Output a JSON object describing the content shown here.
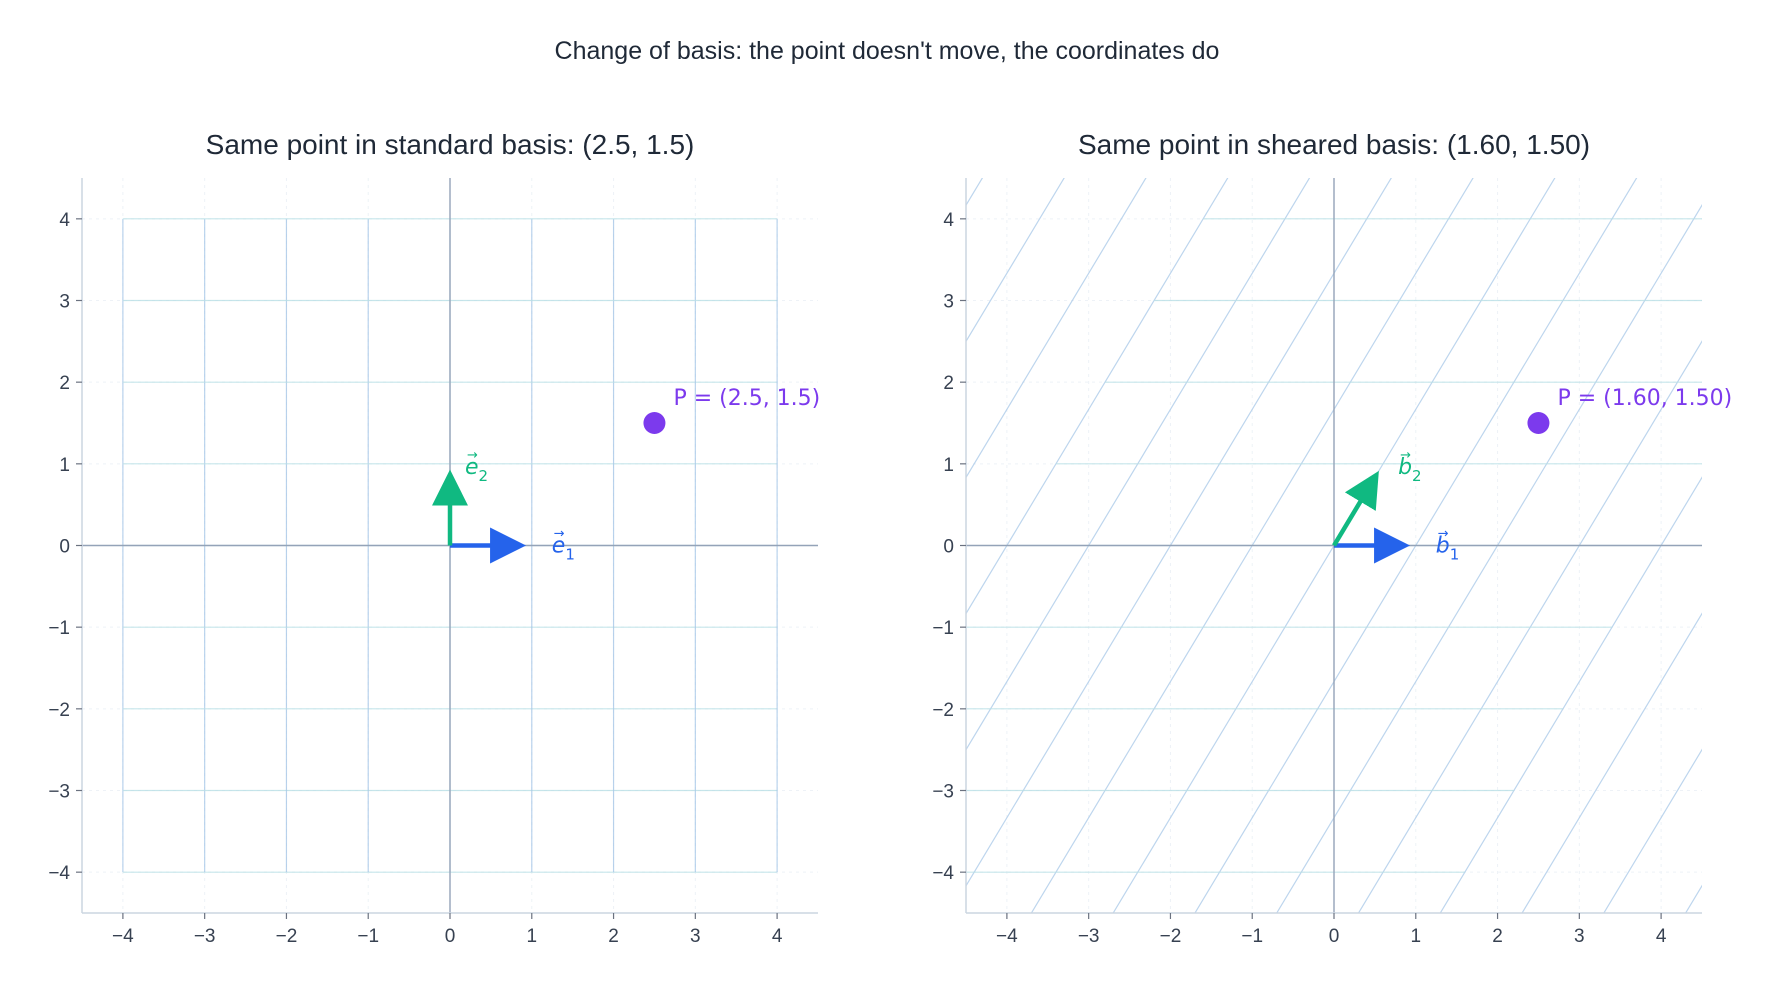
{
  "suptitle": "Change of basis: the point doesn't move, the coordinates do",
  "colors": {
    "e1": "#2563eb",
    "e2": "#10b981",
    "point": "#7c3aed",
    "grid_v": "#a8c8e8",
    "grid_h": "#b9dfe6",
    "axis": "#94a3b8",
    "spine": "#cbd5e1"
  },
  "chart_data": [
    {
      "type": "scatter",
      "title": "Same point in standard basis: (2.5, 1.5)",
      "xlim": [
        -4.5,
        4.5
      ],
      "ylim": [
        -4.5,
        4.5
      ],
      "xticks": [
        "−4",
        "−3",
        "−2",
        "−1",
        "0",
        "1",
        "2",
        "3",
        "4"
      ],
      "yticks": [
        "−4",
        "−3",
        "−2",
        "−1",
        "0",
        "1",
        "2",
        "3",
        "4"
      ],
      "basis": [
        {
          "name": "e1",
          "label": "e",
          "sub": "1",
          "vector": [
            1,
            0
          ]
        },
        {
          "name": "e2",
          "label": "e",
          "sub": "2",
          "vector": [
            0,
            1
          ]
        }
      ],
      "grid": "standard",
      "point": {
        "x": 2.5,
        "y": 1.5,
        "label": "P = (2.5, 1.5)"
      }
    },
    {
      "type": "scatter",
      "title": "Same point in sheared basis: (1.60, 1.50)",
      "xlim": [
        -4.5,
        4.5
      ],
      "ylim": [
        -4.5,
        4.5
      ],
      "xticks": [
        "−4",
        "−3",
        "−2",
        "−1",
        "0",
        "1",
        "2",
        "3",
        "4"
      ],
      "yticks": [
        "−4",
        "−3",
        "−2",
        "−1",
        "0",
        "1",
        "2",
        "3",
        "4"
      ],
      "basis": [
        {
          "name": "b1",
          "label": "b",
          "sub": "1",
          "vector": [
            1,
            0
          ]
        },
        {
          "name": "b2",
          "label": "b",
          "sub": "2",
          "vector": [
            0.6,
            1
          ]
        }
      ],
      "grid": "sheared",
      "point": {
        "x": 2.5,
        "y": 1.5,
        "label": "P = (1.60, 1.50)"
      }
    }
  ]
}
